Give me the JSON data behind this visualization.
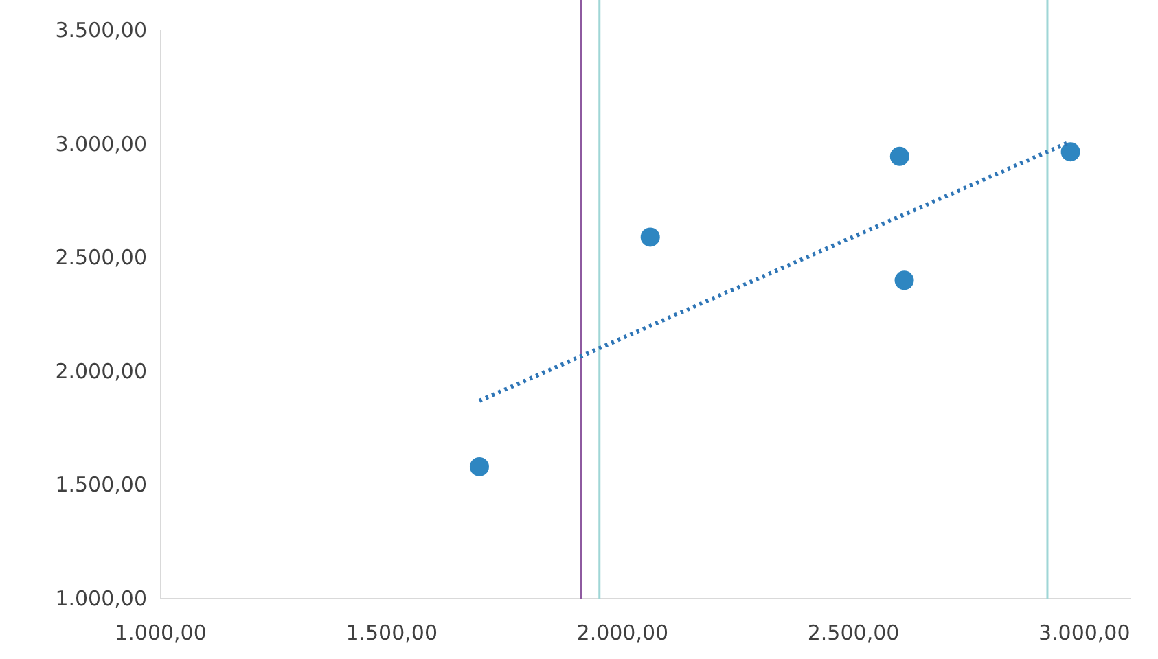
{
  "chart_data": {
    "type": "scatter",
    "xlim": [
      1000,
      3100
    ],
    "ylim": [
      1000,
      3500
    ],
    "xticks": [
      {
        "value": 1000,
        "label": "1.000,00"
      },
      {
        "value": 1500,
        "label": "1.500,00"
      },
      {
        "value": 2000,
        "label": "2.000,00"
      },
      {
        "value": 2500,
        "label": "2.500,00"
      },
      {
        "value": 3000,
        "label": "3.000,00"
      }
    ],
    "yticks": [
      {
        "value": 1000,
        "label": "1.000,00"
      },
      {
        "value": 1500,
        "label": "1.500,00"
      },
      {
        "value": 2000,
        "label": "2.000,00"
      },
      {
        "value": 2500,
        "label": "2.500,00"
      },
      {
        "value": 3000,
        "label": "3.000,00"
      },
      {
        "value": 3500,
        "label": "3.500,00"
      }
    ],
    "grid": false,
    "marker": "circle",
    "series": [
      {
        "color": "#2e86c1",
        "x": [
          1690,
          2060,
          2600,
          2610,
          2970
        ],
        "values": [
          1580,
          2590,
          2945,
          2400,
          2965
        ]
      },
      {
        "type": "line",
        "color": "#2e75b6",
        "line_style": "dotted",
        "marker": "none",
        "x": [
          1690,
          2970
        ],
        "values": [
          1870,
          3010
        ]
      }
    ],
    "ref_lines": [
      {
        "axis": "x",
        "value": 1910,
        "color": "#8e5aa0"
      },
      {
        "axis": "x",
        "value": 1950,
        "color": "#9fd6d6"
      },
      {
        "axis": "x",
        "value": 2920,
        "color": "#9fd6d6"
      }
    ]
  }
}
